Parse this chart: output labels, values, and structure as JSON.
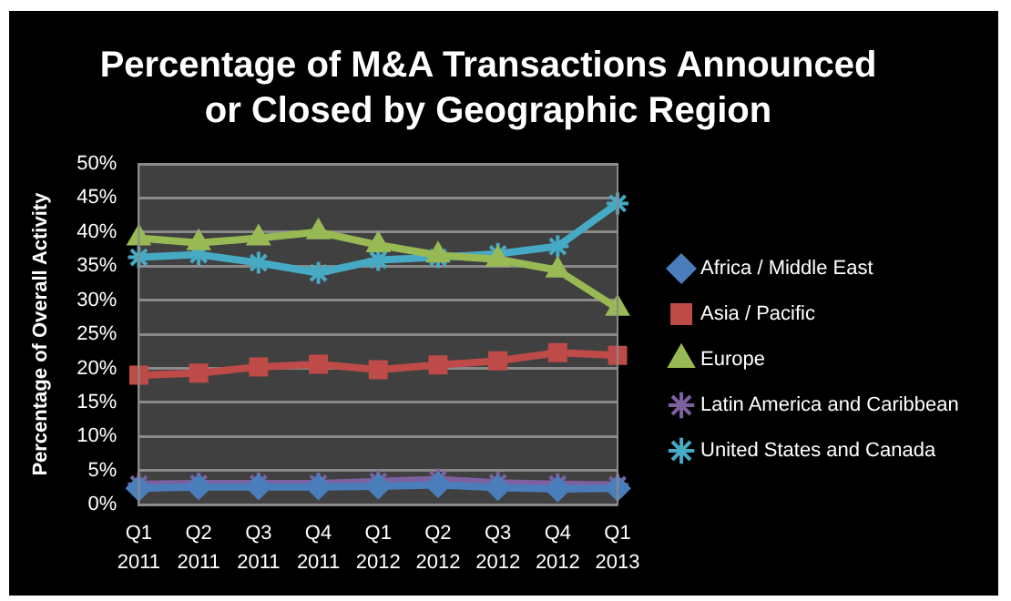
{
  "chart_data": {
    "type": "line",
    "title": "Percentage of M&A Transactions Announced or Closed by Geographic Region",
    "ylabel": "Percentage of Overall Activity",
    "categories": [
      "Q1 2011",
      "Q2 2011",
      "Q3 2011",
      "Q4 2011",
      "Q1 2012",
      "Q2 2012",
      "Q3 2012",
      "Q4 2012",
      "Q1 2013"
    ],
    "series": [
      {
        "name": "Africa / Middle East",
        "color": "#4a7ebb",
        "marker": "diamond",
        "values": [
          2.4,
          2.6,
          2.6,
          2.6,
          2.7,
          2.9,
          2.5,
          2.3,
          2.4
        ]
      },
      {
        "name": "Asia / Pacific",
        "color": "#be4b48",
        "marker": "square",
        "values": [
          19.0,
          19.3,
          20.2,
          20.6,
          19.8,
          20.5,
          21.1,
          22.3,
          21.9
        ]
      },
      {
        "name": "Europe",
        "color": "#98b954",
        "marker": "triangle",
        "values": [
          39.1,
          38.4,
          39.1,
          40.0,
          38.1,
          36.6,
          36.0,
          34.4,
          28.8
        ]
      },
      {
        "name": "Latin America and Caribbean",
        "color": "#7d60a0",
        "marker": "cross",
        "values": [
          3.0,
          3.1,
          3.1,
          3.1,
          3.4,
          3.7,
          3.2,
          3.0,
          2.9
        ]
      },
      {
        "name": "United States and Canada",
        "color": "#46aac5",
        "marker": "cross",
        "values": [
          36.3,
          36.7,
          35.5,
          34.0,
          35.9,
          36.3,
          36.8,
          37.9,
          44.2
        ]
      }
    ],
    "ylim": [
      0,
      50
    ],
    "yticks": [
      {
        "value": 0,
        "label": "0%"
      },
      {
        "value": 5,
        "label": "5%"
      },
      {
        "value": 10,
        "label": "10%"
      },
      {
        "value": 15,
        "label": "15%"
      },
      {
        "value": 20,
        "label": "20%"
      },
      {
        "value": 25,
        "label": "25%"
      },
      {
        "value": 30,
        "label": "30%"
      },
      {
        "value": 35,
        "label": "35%"
      },
      {
        "value": 40,
        "label": "40%"
      },
      {
        "value": 45,
        "label": "45%"
      },
      {
        "value": 50,
        "label": "50%"
      }
    ],
    "grid": "y",
    "legend": "right",
    "line_style": "solid"
  }
}
